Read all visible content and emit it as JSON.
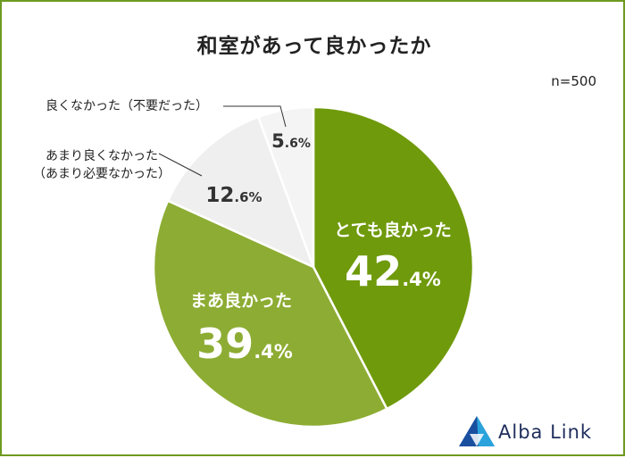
{
  "title": "和室があって良かったか",
  "sample_size": "n=500",
  "brand": {
    "name": "Alba Link"
  },
  "colors": {
    "frame": "#6e9a1f",
    "slice_very_good": "#6f9a0b",
    "slice_somewhat_good": "#8dac33",
    "slice_not_very_good": "#efefef",
    "slice_not_good": "#f4f4f4"
  },
  "chart_data": {
    "type": "pie",
    "title": "和室があって良かったか",
    "slices": [
      {
        "label": "とても良かった",
        "value": 42.4,
        "value_main": "42",
        "value_dec": ".4%",
        "color": "#6f9a0b",
        "label_color": "#ffffff"
      },
      {
        "label": "まあ良かった",
        "value": 39.4,
        "value_main": "39",
        "value_dec": ".4%",
        "color": "#8dac33",
        "label_color": "#ffffff"
      },
      {
        "label": "あまり良くなかった\n（あまり必要なかった）",
        "label_lines": [
          "あまり良くなかった",
          "（あまり必要なかった）"
        ],
        "value": 12.6,
        "value_main": "12",
        "value_dec": ".6%",
        "color": "#efefef",
        "label_color": "#333333"
      },
      {
        "label": "良くなかった（不要だった）",
        "label_lines": [
          "良くなかった（不要だった）"
        ],
        "value": 5.6,
        "value_main": "5",
        "value_dec": ".6%",
        "color": "#f4f4f4",
        "label_color": "#333333"
      }
    ]
  }
}
